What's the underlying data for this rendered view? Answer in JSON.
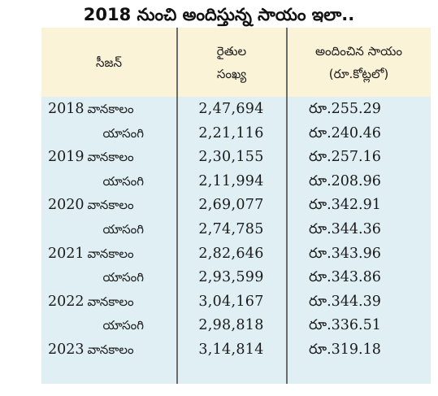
{
  "title": "2018 నుంచి అందిస్తున్న సాయం ఇలా..",
  "table": {
    "headers": {
      "season": "సీజన్",
      "farmers_line1": "రైతుల",
      "farmers_line2": "సంఖ్య",
      "amount_line1": "అందించిన సాయం",
      "amount_line2": "(రూ.కోట్లలో)"
    },
    "rows": [
      {
        "year": "2018",
        "season": "వానకాలం",
        "farmers": "2,47,694",
        "amount": "రూ.255.29"
      },
      {
        "year": "",
        "season": "యాసంగి",
        "farmers": "2,21,116",
        "amount": "రూ.240.46"
      },
      {
        "year": "2019",
        "season": "వానకాలం",
        "farmers": "2,30,155",
        "amount": "రూ.257.16"
      },
      {
        "year": "",
        "season": "యాసంగి",
        "farmers": "2,11,994",
        "amount": "రూ.208.96"
      },
      {
        "year": "2020",
        "season": "వానకాలం",
        "farmers": "2,69,077",
        "amount": "రూ.342.91"
      },
      {
        "year": "",
        "season": "యాసంగి",
        "farmers": "2,74,785",
        "amount": "రూ.344.36"
      },
      {
        "year": "2021",
        "season": "వానకాలం",
        "farmers": "2,82,646",
        "amount": "రూ.343.96"
      },
      {
        "year": "",
        "season": "యాసంగి",
        "farmers": "2,93,599",
        "amount": "రూ.343.86"
      },
      {
        "year": "2022",
        "season": "వానకాలం",
        "farmers": "3,04,167",
        "amount": "రూ.344.39"
      },
      {
        "year": "",
        "season": "యాసంగి",
        "farmers": "2,98,818",
        "amount": "రూ.336.51"
      },
      {
        "year": "2023",
        "season": "వానకాలం",
        "farmers": "3,14,814",
        "amount": "రూ.319.18"
      }
    ]
  },
  "colors": {
    "header_background": "#fbf3d8",
    "body_background": "#dfeff3",
    "divider": "#6a6a6a",
    "text": "#1a1a1a"
  }
}
